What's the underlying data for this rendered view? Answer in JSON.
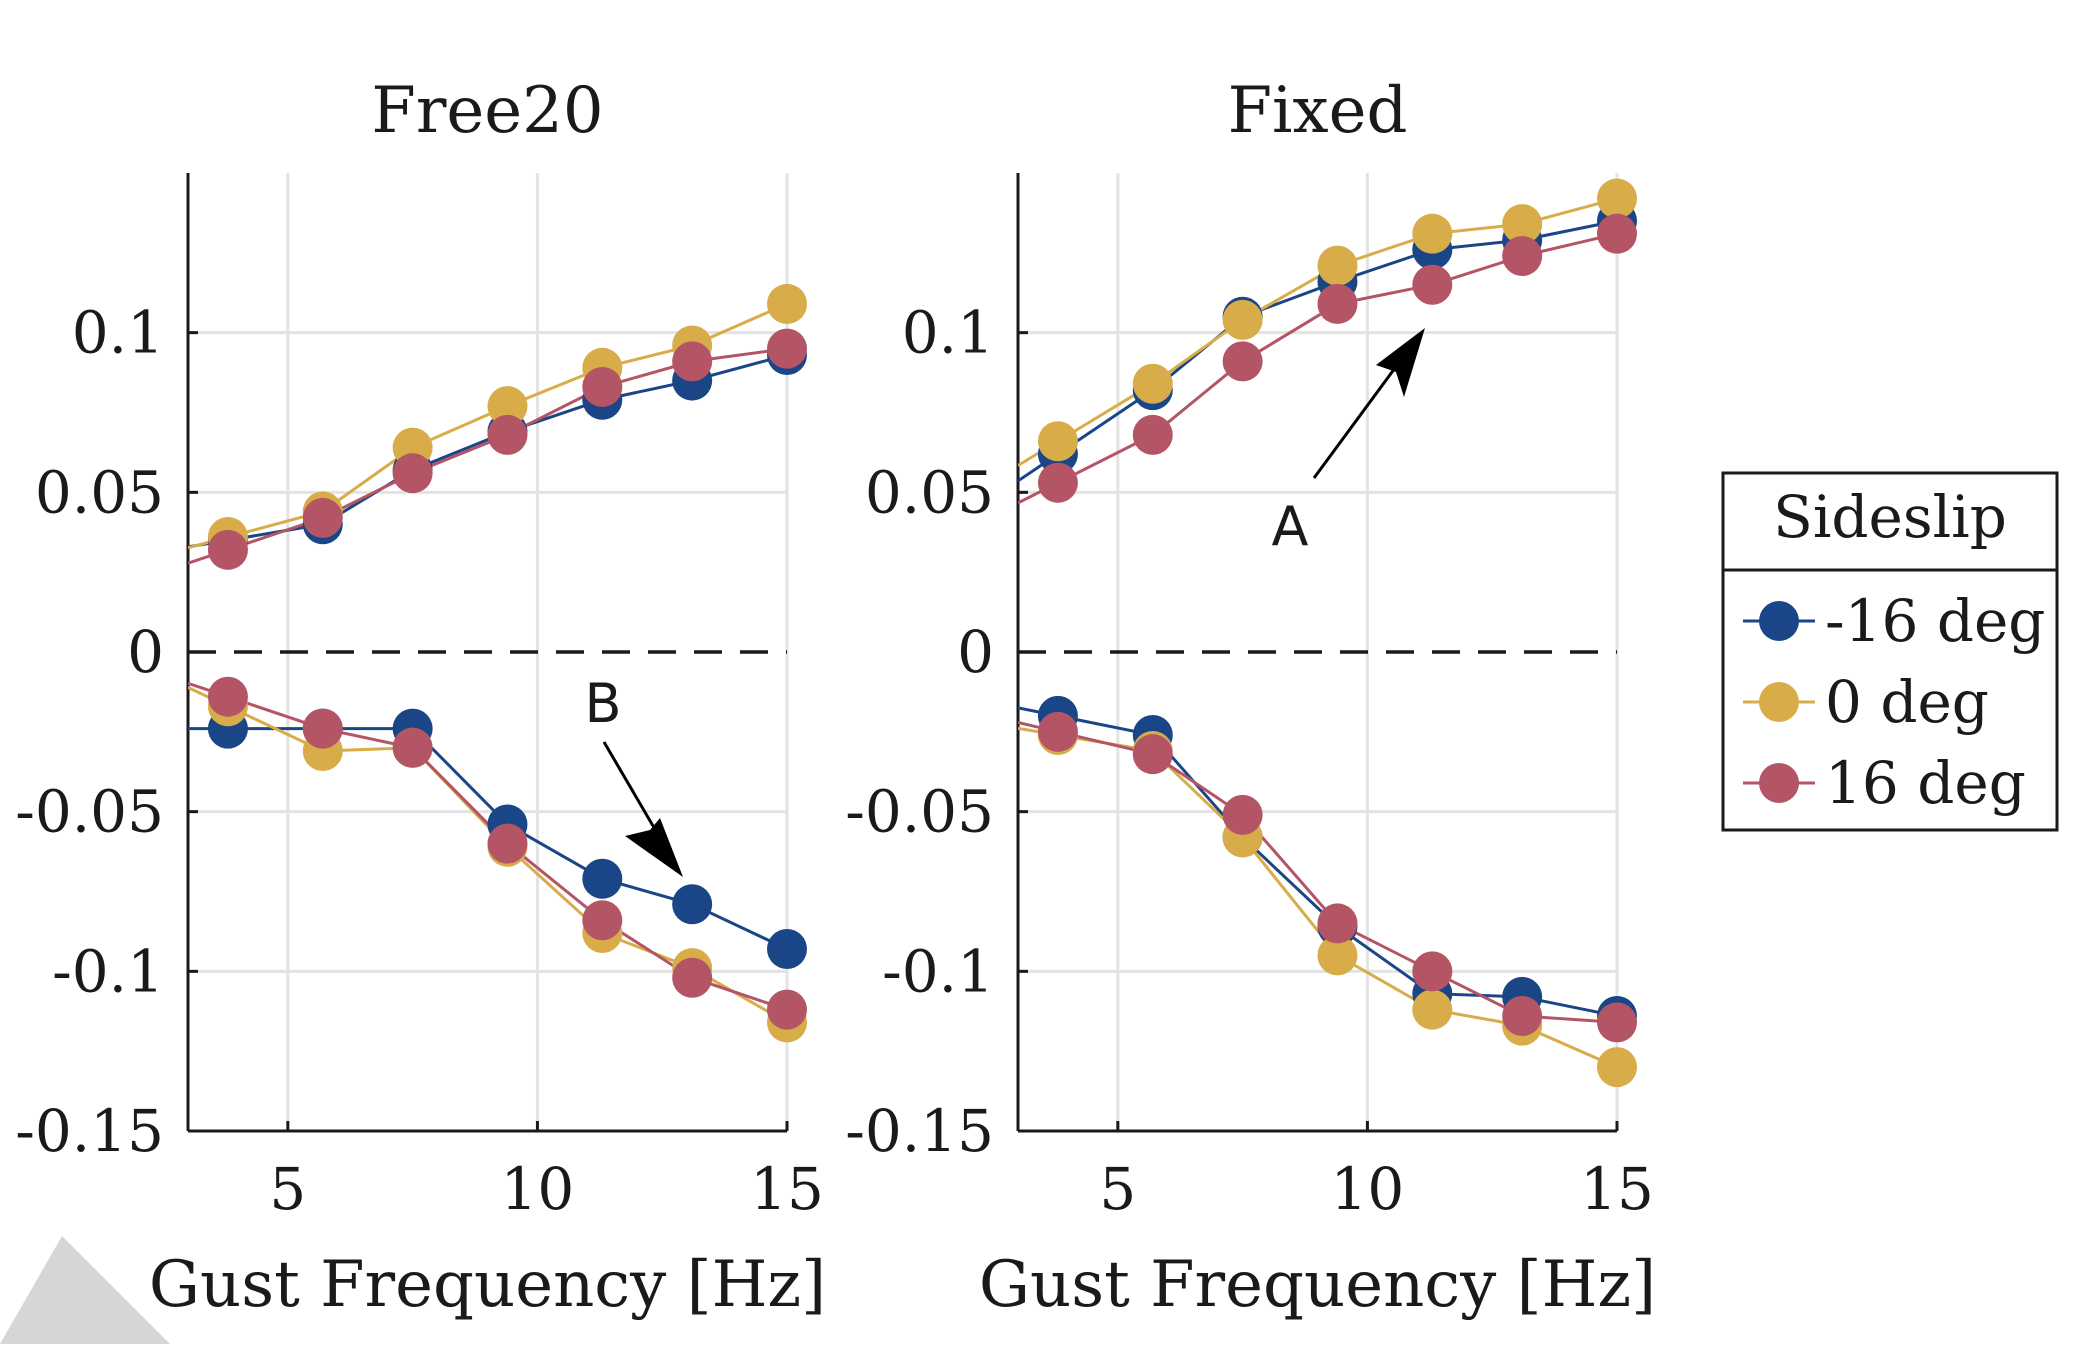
{
  "chart_data": [
    {
      "type": "line",
      "title": "Free20",
      "xlabel": "Gust Frequency [Hz]",
      "ylabel": "",
      "xlim": [
        3,
        15
      ],
      "ylim": [
        -0.15,
        0.15
      ],
      "xticks": [
        "5",
        "10",
        "15"
      ],
      "yticks": [
        "-0.15",
        "-0.1",
        "-0.05",
        "0",
        "0.05",
        "0.1"
      ],
      "grid": true,
      "zero_line": "dashed",
      "x": [
        3.8,
        5.7,
        7.5,
        9.4,
        11.3,
        13.1,
        15
      ],
      "series": [
        {
          "name": "-16 deg",
          "upper": [
            0.035,
            0.04,
            0.057,
            0.069,
            0.079,
            0.085,
            0.093
          ],
          "lower": [
            -0.024,
            -0.024,
            -0.024,
            -0.054,
            -0.071,
            -0.079,
            -0.093
          ]
        },
        {
          "name": "0 deg",
          "upper": [
            0.036,
            0.044,
            0.064,
            0.077,
            0.089,
            0.096,
            0.109
          ],
          "lower": [
            -0.017,
            -0.031,
            -0.03,
            -0.061,
            -0.088,
            -0.099,
            -0.116
          ]
        },
        {
          "name": "16 deg",
          "upper": [
            0.032,
            0.042,
            0.056,
            0.068,
            0.083,
            0.091,
            0.095
          ],
          "lower": [
            -0.014,
            -0.024,
            -0.03,
            -0.06,
            -0.084,
            -0.102,
            -0.112
          ]
        }
      ],
      "annotation": "B"
    },
    {
      "type": "line",
      "title": "Fixed",
      "xlabel": "Gust Frequency [Hz]",
      "ylabel": "",
      "xlim": [
        3,
        15
      ],
      "ylim": [
        -0.15,
        0.15
      ],
      "xticks": [
        "5",
        "10",
        "15"
      ],
      "yticks": [
        "-0.15",
        "-0.1",
        "-0.05",
        "0",
        "0.05",
        "0.1"
      ],
      "grid": true,
      "zero_line": "dashed",
      "x": [
        3.8,
        5.7,
        7.5,
        9.4,
        11.3,
        13.1,
        15
      ],
      "series": [
        {
          "name": "-16 deg",
          "upper": [
            0.062,
            0.082,
            0.105,
            0.116,
            0.126,
            0.129,
            0.135
          ],
          "lower": [
            -0.02,
            -0.026,
            -0.058,
            -0.086,
            -0.107,
            -0.108,
            -0.114
          ]
        },
        {
          "name": "0 deg",
          "upper": [
            0.066,
            0.084,
            0.104,
            0.121,
            0.131,
            0.134,
            0.142
          ],
          "lower": [
            -0.026,
            -0.031,
            -0.058,
            -0.095,
            -0.112,
            -0.117,
            -0.13
          ]
        },
        {
          "name": "16 deg",
          "upper": [
            0.053,
            0.068,
            0.091,
            0.109,
            0.115,
            0.124,
            0.131
          ],
          "lower": [
            -0.025,
            -0.032,
            -0.051,
            -0.085,
            -0.1,
            -0.114,
            -0.116
          ]
        }
      ],
      "annotation": "A"
    }
  ],
  "legend": {
    "title": "Sideslip",
    "placement": "right",
    "items": [
      "-16 deg",
      "0 deg",
      "16 deg"
    ]
  },
  "colors": {
    "series": [
      "#1a4586",
      "#d9ac4a",
      "#b45566"
    ],
    "axis": "#1a1a1a",
    "grid": "#e3e3e3"
  }
}
